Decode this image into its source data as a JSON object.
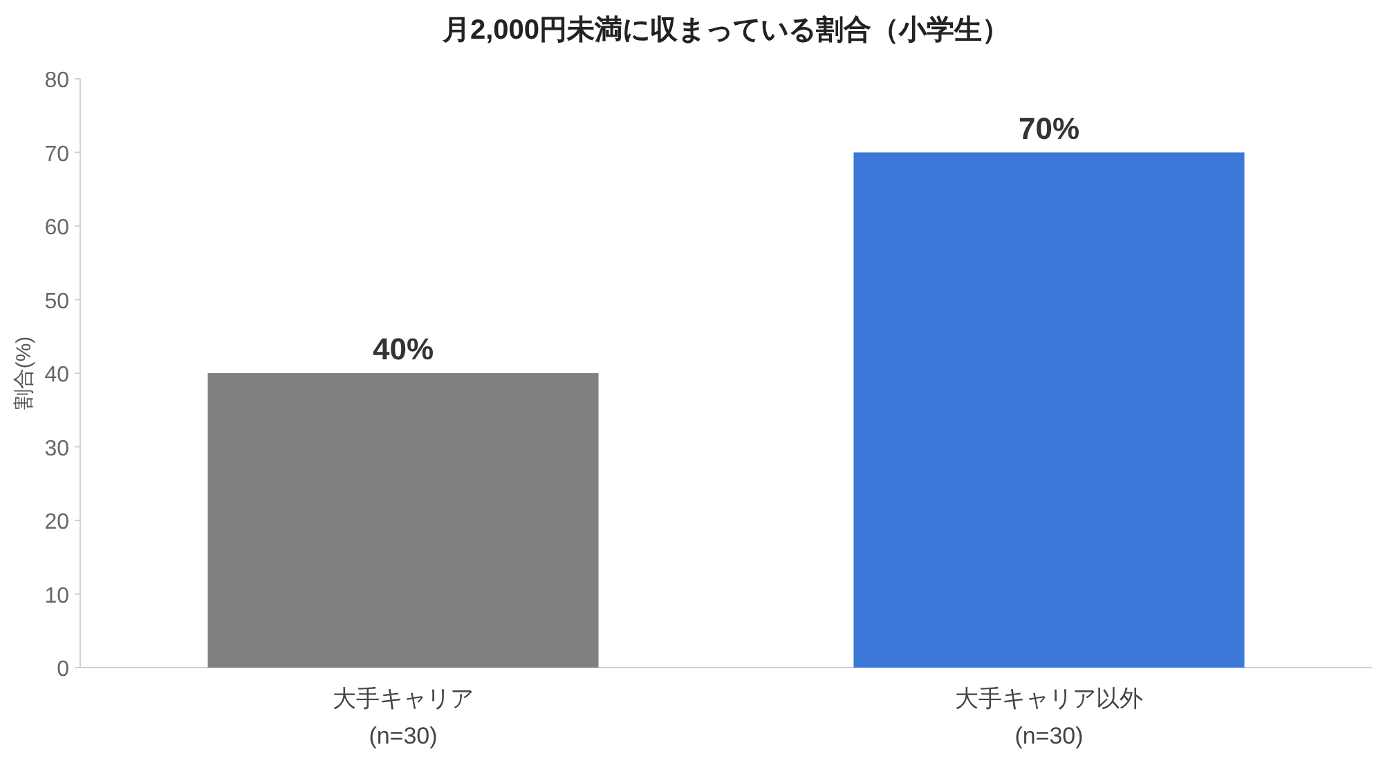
{
  "chart_data": {
    "type": "bar",
    "title": "月2,000円未満に収まっている割合（小学生）",
    "ylabel": "割合(%)",
    "categories": [
      "大手キャリア\n(n=30)",
      "大手キャリア以外\n(n=30)"
    ],
    "values": [
      40,
      70
    ],
    "colors": [
      "#808080",
      "#3c78d8"
    ],
    "value_labels": [
      "40%",
      "70%"
    ],
    "ylim": [
      0,
      80
    ],
    "yticks": [
      0,
      10,
      20,
      30,
      40,
      50,
      60,
      70,
      80
    ]
  }
}
